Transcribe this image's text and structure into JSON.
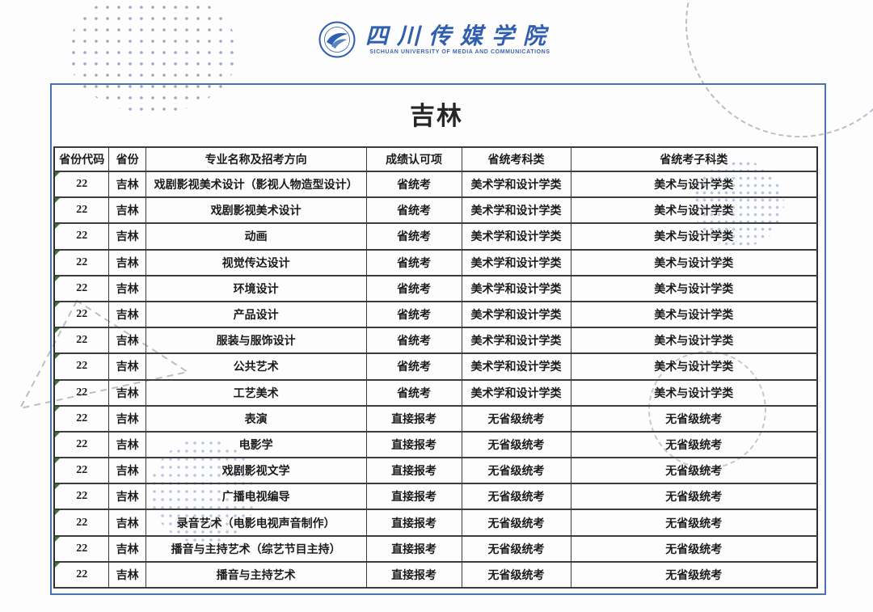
{
  "logo": {
    "cn_name": "四川传媒学院",
    "en_name": "SICHUAN UNIVERSITY OF MEDIA AND COMMUNICATIONS"
  },
  "page_title": "吉林",
  "table": {
    "headers": [
      "省份代码",
      "省份",
      "专业名称及招考方向",
      "成绩认可项",
      "省统考科类",
      "省统考子科类"
    ],
    "rows": [
      [
        "22",
        "吉林",
        "戏剧影视美术设计（影视人物造型设计）",
        "省统考",
        "美术学和设计学类",
        "美术与设计学类"
      ],
      [
        "22",
        "吉林",
        "戏剧影视美术设计",
        "省统考",
        "美术学和设计学类",
        "美术与设计学类"
      ],
      [
        "22",
        "吉林",
        "动画",
        "省统考",
        "美术学和设计学类",
        "美术与设计学类"
      ],
      [
        "22",
        "吉林",
        "视觉传达设计",
        "省统考",
        "美术学和设计学类",
        "美术与设计学类"
      ],
      [
        "22",
        "吉林",
        "环境设计",
        "省统考",
        "美术学和设计学类",
        "美术与设计学类"
      ],
      [
        "22",
        "吉林",
        "产品设计",
        "省统考",
        "美术学和设计学类",
        "美术与设计学类"
      ],
      [
        "22",
        "吉林",
        "服装与服饰设计",
        "省统考",
        "美术学和设计学类",
        "美术与设计学类"
      ],
      [
        "22",
        "吉林",
        "公共艺术",
        "省统考",
        "美术学和设计学类",
        "美术与设计学类"
      ],
      [
        "22",
        "吉林",
        "工艺美术",
        "省统考",
        "美术学和设计学类",
        "美术与设计学类"
      ],
      [
        "22",
        "吉林",
        "表演",
        "直接报考",
        "无省级统考",
        "无省级统考"
      ],
      [
        "22",
        "吉林",
        "电影学",
        "直接报考",
        "无省级统考",
        "无省级统考"
      ],
      [
        "22",
        "吉林",
        "戏剧影视文学",
        "直接报考",
        "无省级统考",
        "无省级统考"
      ],
      [
        "22",
        "吉林",
        "广播电视编导",
        "直接报考",
        "无省级统考",
        "无省级统考"
      ],
      [
        "22",
        "吉林",
        "录音艺术（电影电视声音制作）",
        "直接报考",
        "无省级统考",
        "无省级统考"
      ],
      [
        "22",
        "吉林",
        "播音与主持艺术（综艺节目主持）",
        "直接报考",
        "无省级统考",
        "无省级统考"
      ],
      [
        "22",
        "吉林",
        "播音与主持艺术",
        "直接报考",
        "无省级统考",
        "无省级统考"
      ]
    ]
  },
  "colors": {
    "accent_blue": "#2f5fae",
    "box_border_blue": "#4a72b4",
    "table_border": "#3d3d3d",
    "corner_marker_green": "#3b7d36",
    "decor_dot": "#b9c6de",
    "decor_dash": "#b7bfc9"
  }
}
